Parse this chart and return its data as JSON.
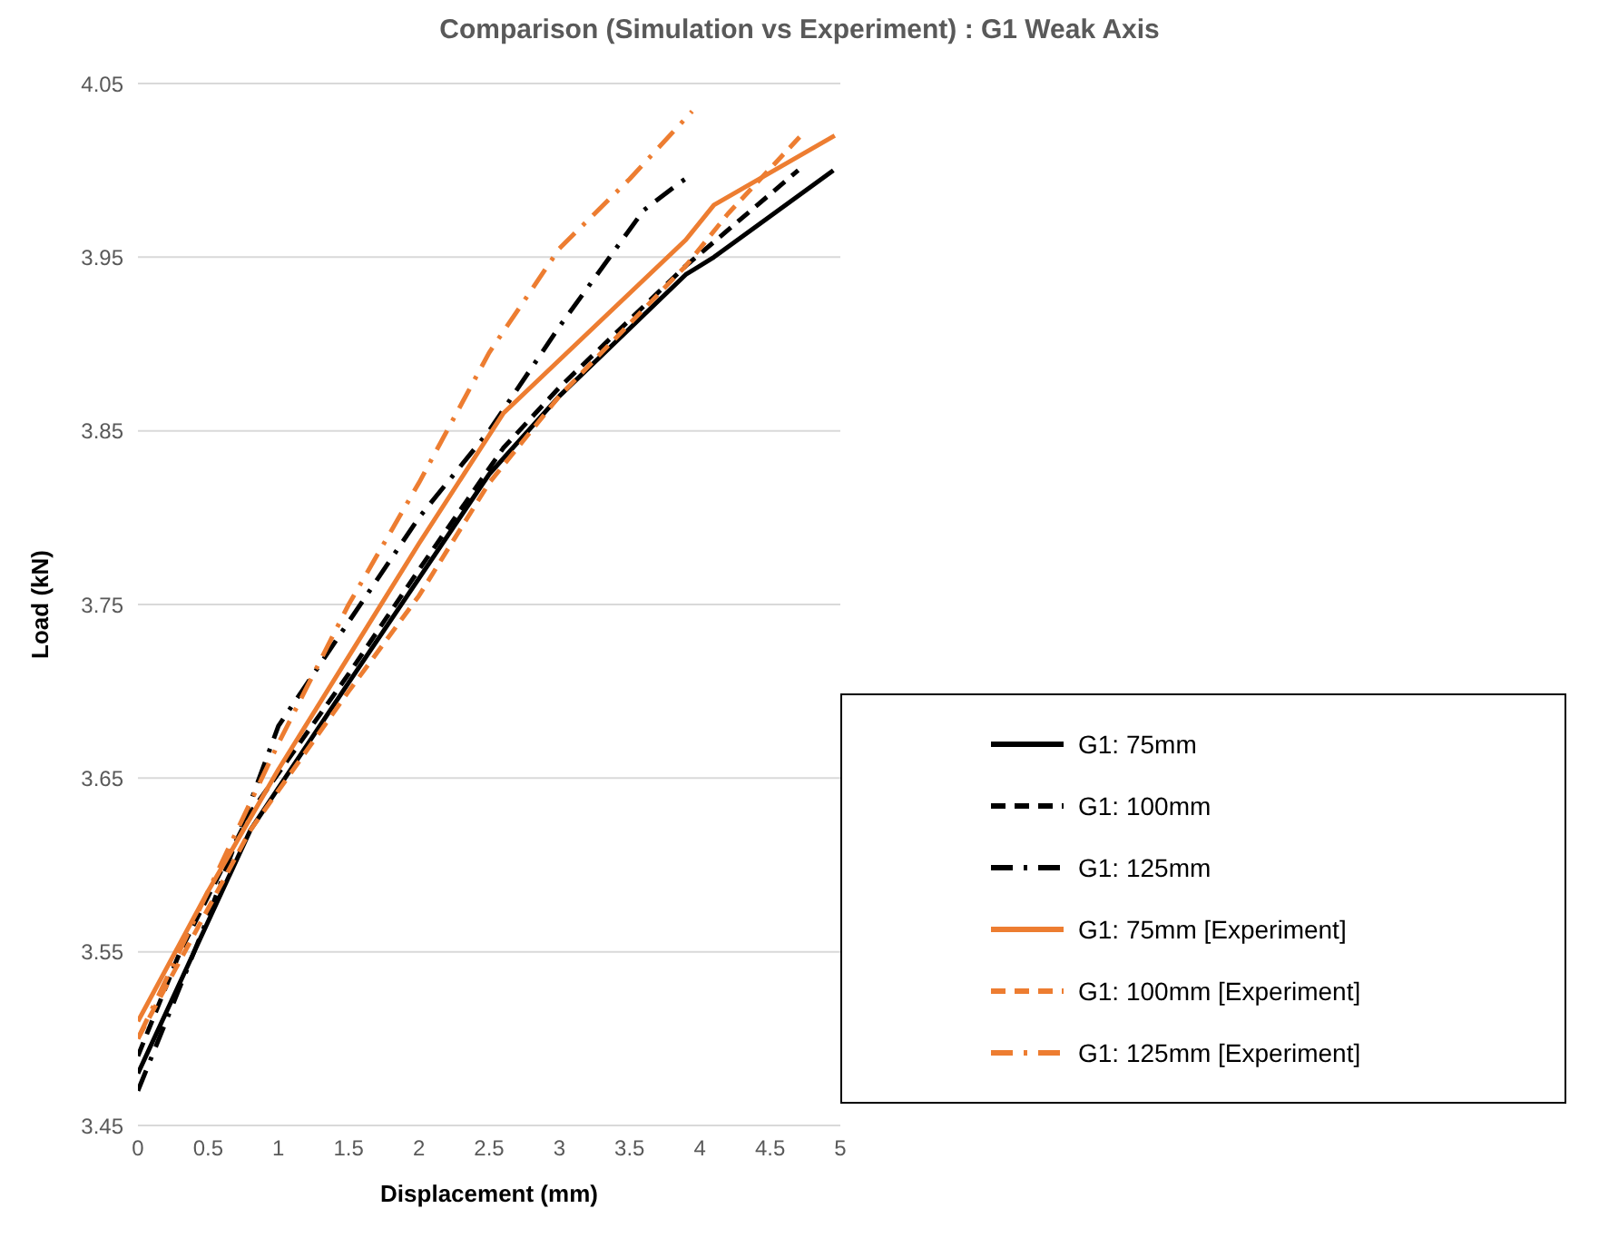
{
  "chart_data": {
    "type": "line",
    "title": "Comparison (Simulation vs Experiment) : G1 Weak Axis",
    "xlabel": "Displacement (mm)",
    "ylabel": "Load (kN)",
    "xlim": [
      0,
      5
    ],
    "xticks": [
      0,
      0.5,
      1,
      1.5,
      2,
      2.5,
      3,
      3.5,
      4,
      4.5,
      5
    ],
    "ylim": [
      3.45,
      4.05
    ],
    "yticks": [
      3.45,
      3.55,
      3.65,
      3.75,
      3.85,
      3.95,
      4.05
    ],
    "grid": "y",
    "legend": "bottom right",
    "marker": "none",
    "series": [
      {
        "name": "G1: 75mm",
        "color": "#000000",
        "line_style": "solid",
        "x": [
          0,
          0.8,
          1.5,
          2,
          2.5,
          3,
          3.9,
          4.1,
          4.95
        ],
        "values": [
          3.48,
          3.62,
          3.705,
          3.765,
          3.825,
          3.87,
          3.94,
          3.95,
          4.0
        ]
      },
      {
        "name": "G1: 100mm",
        "color": "#000000",
        "line_style": "dashed",
        "x": [
          0,
          0.3,
          0.8,
          1.5,
          2,
          2.6,
          3,
          3.9,
          4.7
        ],
        "values": [
          3.49,
          3.55,
          3.63,
          3.71,
          3.77,
          3.84,
          3.875,
          3.945,
          4.0
        ]
      },
      {
        "name": "G1: 125mm",
        "color": "#000000",
        "line_style": "dashdot",
        "x": [
          0,
          0.5,
          1,
          1.5,
          2,
          2.5,
          3,
          3.6,
          3.86,
          3.95
        ],
        "values": [
          3.47,
          3.57,
          3.68,
          3.74,
          3.8,
          3.85,
          3.91,
          3.977,
          3.993,
          3.998
        ]
      },
      {
        "name": "G1: 75mm [Experiment]",
        "color": "#ed7d31",
        "line_style": "solid",
        "x": [
          0,
          0.5,
          1,
          1.5,
          2,
          2.6,
          3.9,
          4.1,
          4.96
        ],
        "values": [
          3.51,
          3.585,
          3.655,
          3.72,
          3.785,
          3.86,
          3.96,
          3.98,
          4.02
        ]
      },
      {
        "name": "G1: 100mm [Experiment]",
        "color": "#ed7d31",
        "line_style": "dashed",
        "x": [
          0,
          0.8,
          1.5,
          2,
          2.5,
          3,
          3.9,
          4.2,
          4.72
        ],
        "values": [
          3.5,
          3.62,
          3.7,
          3.755,
          3.82,
          3.87,
          3.945,
          3.975,
          4.02
        ]
      },
      {
        "name": "G1: 125mm [Experiment]",
        "color": "#ed7d31",
        "line_style": "dashdot",
        "x": [
          0,
          0.5,
          1,
          1.5,
          2,
          2.5,
          3,
          3.5,
          3.945
        ],
        "values": [
          3.5,
          3.585,
          3.67,
          3.75,
          3.82,
          3.895,
          3.955,
          3.995,
          4.034
        ]
      }
    ]
  }
}
